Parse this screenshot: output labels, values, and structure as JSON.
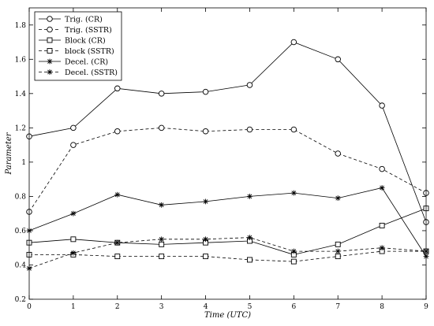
{
  "chart_data": {
    "type": "line",
    "xlabel": "Time (UTC)",
    "ylabel": "Parameter",
    "x": [
      0,
      1,
      2,
      3,
      4,
      5,
      6,
      7,
      8,
      9
    ],
    "xlim": [
      0,
      9
    ],
    "ylim": [
      0.2,
      1.9
    ],
    "xticks": [
      "0",
      "1",
      "2",
      "3",
      "4",
      "5",
      "6",
      "7",
      "8",
      "9"
    ],
    "yticks": [
      "0.2",
      "0.4",
      "0.6",
      "0.8",
      "1",
      "1.2",
      "1.4",
      "1.6",
      "1.8"
    ],
    "ytick_values": [
      0.2,
      0.4,
      0.6,
      0.8,
      1.0,
      1.2,
      1.4,
      1.6,
      1.8
    ],
    "grid": false,
    "legend_position": "top-left",
    "series": [
      {
        "name": "Trig. (CR)",
        "line": "solid",
        "marker": "circle",
        "values": [
          1.15,
          1.2,
          1.43,
          1.4,
          1.41,
          1.45,
          1.7,
          1.6,
          1.33,
          0.65
        ]
      },
      {
        "name": "Trig. (SSTR)",
        "line": "dashed",
        "marker": "circle",
        "values": [
          0.71,
          1.1,
          1.18,
          1.2,
          1.18,
          1.19,
          1.19,
          1.05,
          0.96,
          0.82
        ]
      },
      {
        "name": "Block (CR)",
        "line": "solid",
        "marker": "square",
        "values": [
          0.53,
          0.55,
          0.53,
          0.52,
          0.53,
          0.54,
          0.46,
          0.52,
          0.63,
          0.73
        ]
      },
      {
        "name": "block (SSTR)",
        "line": "dashed",
        "marker": "square",
        "values": [
          0.46,
          0.46,
          0.45,
          0.45,
          0.45,
          0.43,
          0.42,
          0.45,
          0.48,
          0.48
        ]
      },
      {
        "name": "Decel. (CR)",
        "line": "solid",
        "marker": "star",
        "values": [
          0.6,
          0.7,
          0.81,
          0.75,
          0.77,
          0.8,
          0.82,
          0.79,
          0.85,
          0.45
        ]
      },
      {
        "name": "Decel. (SSTR)",
        "line": "dashed",
        "marker": "star",
        "values": [
          0.38,
          0.47,
          0.53,
          0.55,
          0.55,
          0.56,
          0.48,
          0.48,
          0.5,
          0.48
        ]
      }
    ]
  }
}
